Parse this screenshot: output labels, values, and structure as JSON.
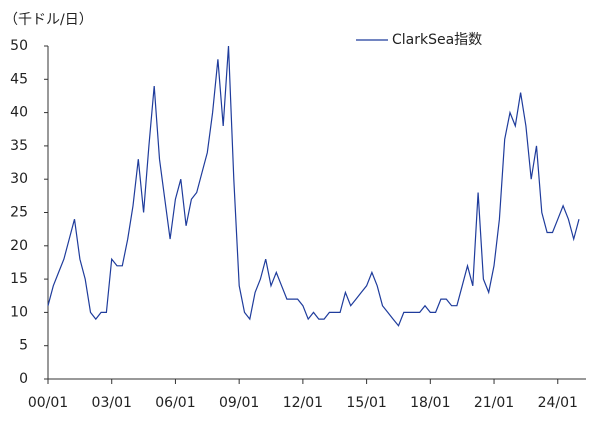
{
  "chart_data": {
    "type": "line",
    "y_label": "（千ドル/日）",
    "x": [
      "00/01",
      "00/04",
      "00/07",
      "00/10",
      "01/01",
      "01/04",
      "01/07",
      "01/10",
      "02/01",
      "02/04",
      "02/07",
      "02/10",
      "03/01",
      "03/04",
      "03/07",
      "03/10",
      "04/01",
      "04/04",
      "04/07",
      "04/10",
      "05/01",
      "05/04",
      "05/07",
      "05/10",
      "06/01",
      "06/04",
      "06/07",
      "06/10",
      "07/01",
      "07/04",
      "07/07",
      "07/10",
      "08/01",
      "08/04",
      "08/07",
      "08/10",
      "09/01",
      "09/04",
      "09/07",
      "09/10",
      "10/01",
      "10/04",
      "10/07",
      "10/10",
      "11/01",
      "11/04",
      "11/07",
      "11/10",
      "12/01",
      "12/04",
      "12/07",
      "12/10",
      "13/01",
      "13/04",
      "13/07",
      "13/10",
      "14/01",
      "14/04",
      "14/07",
      "14/10",
      "15/01",
      "15/04",
      "15/07",
      "15/10",
      "16/01",
      "16/04",
      "16/07",
      "16/10",
      "17/01",
      "17/04",
      "17/07",
      "17/10",
      "18/01",
      "18/04",
      "18/07",
      "18/10",
      "19/01",
      "19/04",
      "19/07",
      "19/10",
      "20/01",
      "20/04",
      "20/07",
      "20/10",
      "21/01",
      "21/04",
      "21/07",
      "21/10",
      "22/01",
      "22/04",
      "22/07",
      "22/10",
      "23/01",
      "23/04",
      "23/07",
      "23/10",
      "24/01",
      "24/04",
      "24/07",
      "24/10",
      "25/01"
    ],
    "series": [
      {
        "name": "ClarkSea指数",
        "color": "#1f3c9c",
        "values": [
          11,
          14,
          16,
          18,
          21,
          24,
          18,
          15,
          10,
          9,
          10,
          10,
          18,
          17,
          17,
          21,
          26,
          33,
          25,
          35,
          44,
          33,
          27,
          21,
          27,
          30,
          23,
          27,
          28,
          31,
          34,
          40,
          48,
          38,
          50,
          30,
          14,
          10,
          9,
          13,
          15,
          18,
          14,
          16,
          14,
          12,
          12,
          12,
          11,
          9,
          10,
          9,
          9,
          10,
          10,
          10,
          13,
          11,
          12,
          13,
          14,
          16,
          14,
          11,
          10,
          9,
          8,
          10,
          10,
          10,
          10,
          11,
          10,
          10,
          12,
          12,
          11,
          11,
          14,
          17,
          14,
          28,
          15,
          13,
          17,
          24,
          36,
          40,
          38,
          43,
          38,
          30,
          35,
          25,
          22,
          22,
          24,
          26,
          24,
          21,
          24
        ]
      }
    ],
    "xticks": [
      "00/01",
      "03/01",
      "06/01",
      "09/01",
      "12/01",
      "15/01",
      "18/01",
      "21/01",
      "24/01"
    ],
    "ylim": [
      0,
      50
    ],
    "yticks": [
      0,
      5,
      10,
      15,
      20,
      25,
      30,
      35,
      40,
      45,
      50
    ],
    "legend": "top-right"
  }
}
